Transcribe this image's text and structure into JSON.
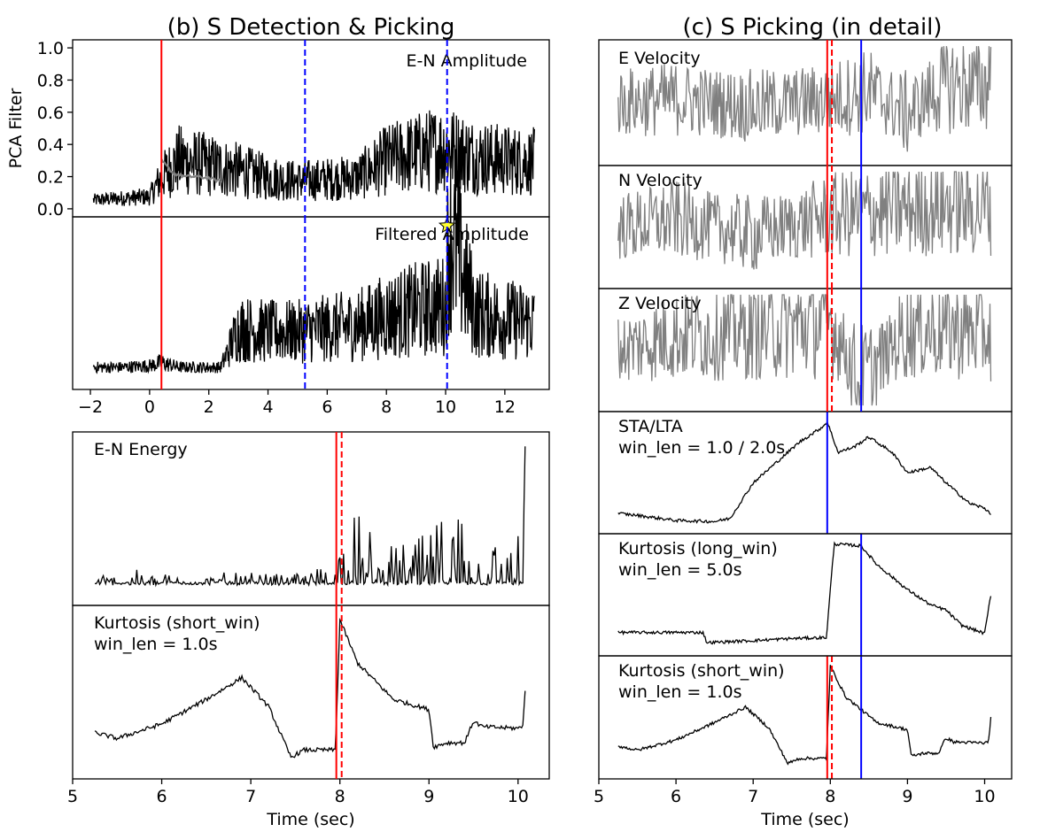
{
  "figure": {
    "panel_b_title": "(b) S Detection & Picking",
    "panel_c_title": "(c) S Picking (in detail)"
  },
  "colors": {
    "trace": "#000000",
    "trace_grey": "#808080",
    "pick_red": "#ff0000",
    "pick_blue": "#0000ff",
    "star": "#ffff33"
  },
  "chart_data": [
    {
      "id": "b_top",
      "type": "line",
      "ylabel": "PCA Filter",
      "xlabel": "",
      "xlim": [
        -2.6,
        13.5
      ],
      "x_ticks": [
        -2,
        0,
        2,
        4,
        6,
        8,
        10,
        12
      ],
      "x_tick_labels": [
        "−2",
        "0",
        "2",
        "4",
        "6",
        "8",
        "10",
        "12"
      ],
      "grid": false,
      "panels": [
        {
          "label": "E-N Amplitude",
          "ylim": [
            -0.05,
            1.05
          ],
          "y_ticks": [
            0.0,
            0.2,
            0.4,
            0.6,
            0.8,
            1.0
          ],
          "y_tick_labels": [
            "0.0",
            "0.2",
            "0.4",
            "0.6",
            "0.8",
            "1.0"
          ],
          "series": [
            {
              "color": "black",
              "x": [
                -1.9,
                -1.0,
                0.0,
                0.4,
                1.0,
                2.0,
                3.0,
                4.0,
                5.0,
                6.0,
                7.0,
                8.0,
                9.0,
                10.0,
                11.0,
                12.0,
                13.0
              ],
              "values": [
                0.05,
                0.06,
                0.07,
                0.18,
                0.28,
                0.25,
                0.22,
                0.18,
                0.16,
                0.17,
                0.18,
                0.28,
                0.32,
                0.35,
                0.3,
                0.28,
                0.27
              ]
            },
            {
              "color": "grey",
              "x": [
                0.4,
                0.8,
                1.2,
                1.6,
                2.0,
                2.4
              ],
              "values": [
                0.3,
                0.22,
                0.2,
                0.2,
                0.19,
                0.17
              ]
            }
          ]
        },
        {
          "label": "Filtered Amplitude",
          "series": [
            {
              "color": "black",
              "x": [
                -1.9,
                -1.0,
                0.0,
                0.4,
                1.0,
                2.0,
                2.4,
                3.0,
                4.0,
                5.0,
                6.0,
                7.0,
                8.0,
                9.0,
                10.0,
                10.1,
                11.0,
                12.0,
                13.0
              ],
              "values": [
                0.05,
                0.05,
                0.06,
                0.08,
                0.05,
                0.05,
                0.05,
                0.3,
                0.28,
                0.28,
                0.3,
                0.32,
                0.38,
                0.42,
                0.45,
                0.95,
                0.4,
                0.36,
                0.34
              ]
            }
          ],
          "annotations": [
            {
              "type": "star",
              "x": 10.05,
              "value": "max"
            }
          ]
        }
      ],
      "vlines": [
        {
          "x": 0.4,
          "color": "red",
          "style": "solid"
        },
        {
          "x": 5.25,
          "color": "blue",
          "style": "dashed"
        },
        {
          "x": 10.05,
          "color": "blue",
          "style": "dashed"
        }
      ]
    },
    {
      "id": "b_bottom",
      "type": "line",
      "xlabel": "Time (sec)",
      "xlim": [
        5.0,
        10.35
      ],
      "x_ticks": [
        5,
        6,
        7,
        8,
        9,
        10
      ],
      "x_tick_labels": [
        "5",
        "6",
        "7",
        "8",
        "9",
        "10"
      ],
      "grid": false,
      "panels": [
        {
          "label": "E-N Energy",
          "series": [
            {
              "color": "black",
              "x": [
                5.25,
                6.0,
                7.0,
                7.5,
                7.95,
                8.0,
                8.1,
                8.5,
                9.0,
                9.4,
                9.5,
                10.0,
                10.05,
                10.08
              ],
              "values": [
                0.05,
                0.05,
                0.04,
                0.04,
                0.1,
                0.4,
                0.35,
                0.15,
                0.2,
                0.5,
                0.25,
                0.2,
                0.08,
                1.0
              ]
            }
          ]
        },
        {
          "label": "Kurtosis (short_win)\nwin_len = 1.0s",
          "series": [
            {
              "color": "black",
              "x": [
                5.25,
                5.5,
                6.0,
                6.5,
                6.9,
                7.2,
                7.45,
                7.6,
                7.95,
                8.0,
                8.1,
                8.2,
                8.6,
                9.0,
                9.05,
                9.2,
                9.4,
                9.5,
                9.6,
                10.0,
                10.05,
                10.08
              ],
              "values": [
                0.22,
                0.18,
                0.28,
                0.45,
                0.6,
                0.4,
                0.05,
                0.1,
                0.1,
                1.0,
                0.85,
                0.7,
                0.45,
                0.38,
                0.12,
                0.15,
                0.15,
                0.3,
                0.26,
                0.25,
                0.26,
                0.5
              ]
            }
          ]
        }
      ],
      "vlines": [
        {
          "x": 7.96,
          "color": "red",
          "style": "solid"
        },
        {
          "x": 8.02,
          "color": "red",
          "style": "dashed"
        }
      ]
    },
    {
      "id": "c",
      "type": "line",
      "xlabel": "Time (sec)",
      "xlim": [
        5.0,
        10.35
      ],
      "x_ticks": [
        5,
        6,
        7,
        8,
        9,
        10
      ],
      "x_tick_labels": [
        "5",
        "6",
        "7",
        "8",
        "9",
        "10"
      ],
      "grid": false,
      "panels": [
        {
          "label": "E Velocity",
          "series": [
            {
              "color": "grey",
              "x": [
                5.25,
                6.0,
                7.0,
                8.0,
                8.5,
                9.0,
                9.5,
                10.0,
                10.08
              ],
              "values": [
                0.0,
                0.1,
                -0.1,
                0.1,
                0.3,
                -0.3,
                0.5,
                0.4,
                0.9
              ]
            }
          ]
        },
        {
          "label": "N Velocity",
          "series": [
            {
              "color": "grey",
              "x": [
                5.25,
                6.0,
                7.0,
                8.0,
                8.5,
                9.0,
                9.5,
                10.0,
                10.08
              ],
              "values": [
                0.0,
                0.2,
                -0.2,
                0.3,
                0.4,
                0.5,
                0.6,
                0.5,
                0.8
              ]
            }
          ]
        },
        {
          "label": "Z Velocity",
          "series": [
            {
              "color": "grey",
              "x": [
                5.25,
                6.0,
                7.0,
                7.8,
                8.0,
                8.4,
                9.0,
                9.5,
                10.0,
                10.08
              ],
              "values": [
                0.0,
                0.4,
                0.5,
                0.7,
                0.8,
                -0.9,
                0.6,
                0.6,
                0.5,
                0.3
              ]
            }
          ]
        },
        {
          "label": "STA/LTA\nwin_len = 1.0 / 2.0s",
          "series": [
            {
              "color": "black",
              "x": [
                5.25,
                5.5,
                6.0,
                6.5,
                6.7,
                7.0,
                7.3,
                7.6,
                7.9,
                7.96,
                8.1,
                8.3,
                8.5,
                8.8,
                9.0,
                9.3,
                9.5,
                9.8,
                10.0,
                10.08
              ],
              "values": [
                0.1,
                0.08,
                0.03,
                0.02,
                0.05,
                0.4,
                0.6,
                0.8,
                0.95,
                1.0,
                0.7,
                0.75,
                0.85,
                0.7,
                0.5,
                0.55,
                0.4,
                0.2,
                0.15,
                0.1
              ]
            }
          ],
          "vlines": [
            {
              "x": 7.96,
              "color": "blue",
              "style": "solid"
            }
          ]
        },
        {
          "label": "Kurtosis (long_win)\nwin_len = 5.0s",
          "series": [
            {
              "color": "black",
              "x": [
                5.25,
                6.0,
                6.35,
                6.4,
                7.0,
                7.5,
                7.95,
                8.0,
                8.05,
                8.4,
                8.6,
                9.0,
                9.3,
                9.5,
                9.7,
                10.0,
                10.08
              ],
              "values": [
                0.13,
                0.13,
                0.13,
                0.03,
                0.05,
                0.07,
                0.08,
                0.55,
                1.0,
                0.98,
                0.8,
                0.55,
                0.4,
                0.35,
                0.2,
                0.12,
                0.5
              ]
            }
          ],
          "vlines": [
            {
              "x": 8.4,
              "color": "blue",
              "style": "solid"
            }
          ]
        },
        {
          "label": "Kurtosis (short_win)\nwin_len = 1.0s",
          "series": [
            {
              "color": "black",
              "x": [
                5.25,
                5.5,
                6.0,
                6.5,
                6.9,
                7.2,
                7.45,
                7.6,
                7.95,
                8.0,
                8.1,
                8.2,
                8.6,
                9.0,
                9.05,
                9.2,
                9.4,
                9.5,
                9.6,
                10.0,
                10.05,
                10.08
              ],
              "values": [
                0.22,
                0.18,
                0.28,
                0.45,
                0.6,
                0.4,
                0.05,
                0.1,
                0.1,
                1.0,
                0.85,
                0.7,
                0.45,
                0.38,
                0.12,
                0.15,
                0.15,
                0.3,
                0.26,
                0.25,
                0.26,
                0.5
              ]
            }
          ],
          "vlines": [
            {
              "x": 7.96,
              "color": "red",
              "style": "solid"
            },
            {
              "x": 8.02,
              "color": "red",
              "style": "dashed"
            },
            {
              "x": 8.4,
              "color": "blue",
              "style": "solid"
            }
          ]
        }
      ],
      "vlines": [
        {
          "x": 7.96,
          "color": "red",
          "style": "solid",
          "panels": [
            0,
            1,
            2
          ]
        },
        {
          "x": 8.02,
          "color": "red",
          "style": "dashed",
          "panels": [
            0,
            1,
            2
          ]
        },
        {
          "x": 8.4,
          "color": "blue",
          "style": "solid",
          "panels": [
            0,
            1,
            2
          ]
        }
      ]
    }
  ]
}
